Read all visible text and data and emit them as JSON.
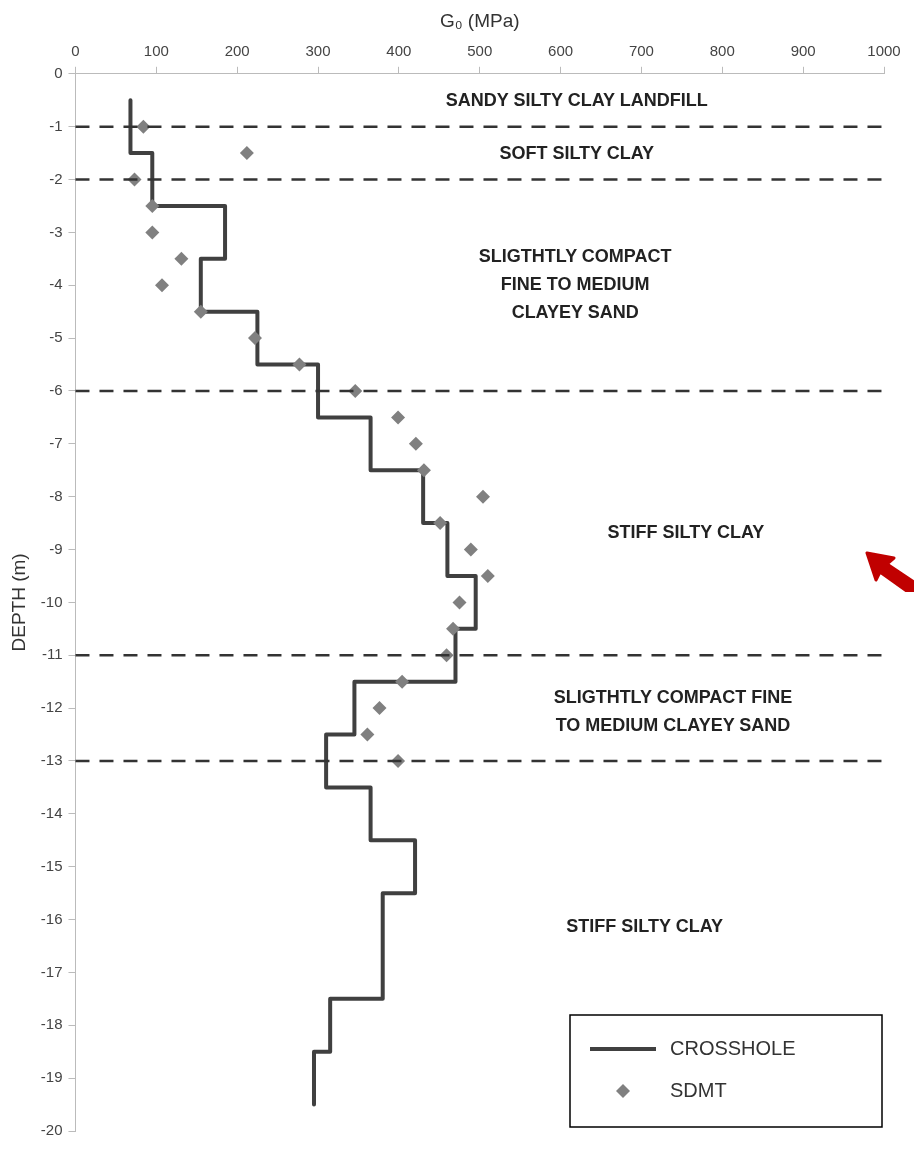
{
  "chart_data": {
    "type": "line",
    "xlabel": "G₀ (MPa)",
    "ylabel": "DEPTH (m)",
    "xlim": [
      0,
      1000
    ],
    "xticks": [
      0,
      100,
      200,
      300,
      400,
      500,
      600,
      700,
      800,
      900,
      1000
    ],
    "ylim": [
      -20,
      0
    ],
    "yticks": [
      0,
      -1,
      -2,
      -3,
      -4,
      -5,
      -6,
      -7,
      -8,
      -9,
      -10,
      -11,
      -12,
      -13,
      -14,
      -15,
      -16,
      -17,
      -18,
      -19,
      -20
    ],
    "grid": false,
    "legend": "bottom right",
    "series": [
      {
        "name": "CROSSHOLE",
        "color": "#404040",
        "marker": "none",
        "line_style": "solid",
        "x": [
          68,
          68,
          95,
          95,
          185,
          185,
          155,
          155,
          225,
          225,
          300,
          300,
          365,
          365,
          430,
          430,
          460,
          460,
          495,
          495,
          470,
          470,
          345,
          345,
          310,
          310,
          365,
          365,
          420,
          420,
          380,
          380,
          315,
          315,
          295,
          295
        ],
        "values": [
          -0.5,
          -1.5,
          -1.5,
          -2.5,
          -2.5,
          -3.5,
          -3.5,
          -4.5,
          -4.5,
          -5.5,
          -5.5,
          -6.5,
          -6.5,
          -7.5,
          -7.5,
          -8.5,
          -8.5,
          -9.5,
          -9.5,
          -10.5,
          -10.5,
          -11.5,
          -11.5,
          -12.5,
          -12.5,
          -13.5,
          -13.5,
          -14.5,
          -14.5,
          -15.5,
          -15.5,
          -17.5,
          -17.5,
          -18.5,
          -18.5,
          -19.5
        ]
      },
      {
        "name": "SDMT",
        "type": "scatter",
        "color": "#808080",
        "marker": "diamond",
        "x": [
          84,
          212,
          73,
          95,
          95,
          131,
          107,
          155,
          222,
          277,
          346,
          399,
          421,
          431,
          504,
          451,
          489,
          510,
          475,
          467,
          459,
          404,
          376,
          361,
          399
        ],
        "values": [
          -1,
          -1.5,
          -2,
          -2.5,
          -3,
          -3.5,
          -4,
          -4.5,
          -5,
          -5.5,
          -6,
          -6.5,
          -7,
          -7.5,
          -8,
          -8.5,
          -9,
          -9.5,
          -10,
          -10.5,
          -11,
          -11.5,
          -12,
          -12.5,
          -13
        ]
      }
    ],
    "ref_lines": [
      {
        "axis": "y",
        "value": -1,
        "color": "#333333",
        "line_style": "dashed"
      },
      {
        "axis": "y",
        "value": -2,
        "color": "#333333",
        "line_style": "dashed"
      },
      {
        "axis": "y",
        "value": -6,
        "color": "#333333",
        "line_style": "dashed"
      },
      {
        "axis": "y",
        "value": -11,
        "color": "#333333",
        "line_style": "dashed"
      },
      {
        "axis": "y",
        "value": -13,
        "color": "#333333",
        "line_style": "dashed"
      }
    ],
    "annotations": [
      "SANDY SILTY CLAY LANDFILL",
      "SOFT SILTY CLAY",
      "SLIGTHTLY COMPACT\nFINE TO MEDIUM\nCLAYEY SAND",
      "STIFF SILTY CLAY",
      "SLIGTHTLY COMPACT FINE\nTO MEDIUM CLAYEY SAND",
      "STIFF SILTY CLAY"
    ]
  }
}
